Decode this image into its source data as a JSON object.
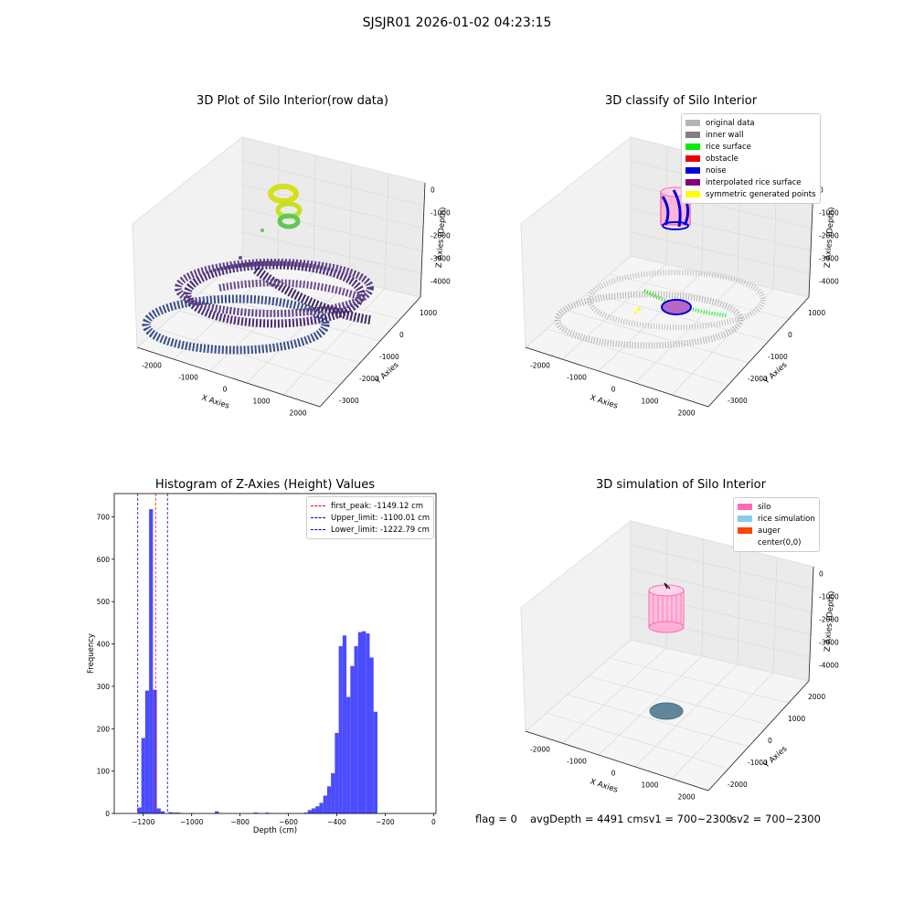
{
  "suptitle": "SJSJR01 2026-01-02 04:23:15",
  "panels": {
    "raw": {
      "title": "3D Plot of Silo Interior(row data)",
      "xlabel": "X Axies",
      "ylabel": "Y Axies",
      "zlabel": "Z Axies (Depth)",
      "xticks": [
        "-2000",
        "-1000",
        "0",
        "1000",
        "2000"
      ],
      "yticks": [
        "-3000",
        "-2000",
        "-1000",
        "0",
        "1000"
      ],
      "zticks": [
        "0",
        "-1000",
        "-2000",
        "-3000",
        "-4000"
      ]
    },
    "classify": {
      "title": "3D classify of Silo Interior",
      "xlabel": "X Axies",
      "ylabel": "Y Axies",
      "zlabel": "Z Axies (Depth)",
      "xticks": [
        "-2000",
        "-1000",
        "0",
        "1000",
        "2000"
      ],
      "yticks": [
        "-3000",
        "-2000",
        "-1000",
        "0",
        "1000"
      ],
      "zticks": [
        "0",
        "-1000",
        "-2000",
        "-3000",
        "-4000"
      ],
      "legend": [
        {
          "label": "original data",
          "color": "#b4b4b4"
        },
        {
          "label": "inner wall",
          "color": "#808080"
        },
        {
          "label": "rice surface",
          "color": "#00ee00"
        },
        {
          "label": "obstacle",
          "color": "#ee0000"
        },
        {
          "label": "noise",
          "color": "#0000dd"
        },
        {
          "label": "interpolated rice surface",
          "color": "#800080"
        },
        {
          "label": "symmetric generated points",
          "color": "#ffff00"
        }
      ]
    },
    "simulation": {
      "title": "3D simulation of Silo Interior",
      "xlabel": "X Axies",
      "ylabel": "Y Axies",
      "zlabel": "Z Axies (Depth)",
      "xticks": [
        "-2000",
        "-1000",
        "0",
        "1000",
        "2000"
      ],
      "yticks": [
        "-2000",
        "-1000",
        "0",
        "1000",
        "2000"
      ],
      "zticks": [
        "0",
        "-1000",
        "-2000",
        "-3000",
        "-4000"
      ],
      "legend": [
        {
          "label": "silo",
          "color": "#ff69b4"
        },
        {
          "label": "rice simulation",
          "color": "#87ceeb"
        },
        {
          "label": "auger",
          "color": "#ff4500"
        },
        {
          "label": "center(0,0)",
          "color": "#ffffff"
        }
      ]
    }
  },
  "footer": {
    "flag": "flag = 0",
    "avg": "avgDepth = 4491 cmsv1 = 700~2300",
    "sv2": "sv2 = 700~2300"
  },
  "chart_data": [
    {
      "type": "histogram",
      "title": "Histogram of Z-Axies (Height) Values",
      "xlabel": "Depth (cm)",
      "ylabel": "Frequency",
      "xlim": [
        -1320,
        10
      ],
      "ylim": [
        0,
        755
      ],
      "xticks": [
        -1200,
        -1000,
        -800,
        -600,
        -400,
        -200,
        0
      ],
      "yticks": [
        0,
        100,
        200,
        300,
        400,
        500,
        600,
        700
      ],
      "bin_edges": [
        -1240,
        -1224,
        -1208,
        -1192,
        -1176,
        -1160,
        -1144,
        -1128,
        -1112,
        -1096,
        -1080,
        -1064,
        -1048,
        -1032,
        -1016,
        -1000,
        -984,
        -968,
        -952,
        -936,
        -920,
        -904,
        -888,
        -872,
        -856,
        -840,
        -824,
        -808,
        -792,
        -776,
        -760,
        -744,
        -728,
        -712,
        -696,
        -680,
        -664,
        -648,
        -632,
        -616,
        -600,
        -584,
        -568,
        -552,
        -536,
        -520,
        -504,
        -488,
        -472,
        -456,
        -440,
        -424,
        -408,
        -392,
        -376,
        -360,
        -344,
        -328,
        -312,
        -296,
        -280,
        -264,
        -248,
        -232,
        -216,
        -200,
        -184,
        -168,
        -152,
        -136,
        -120,
        -104,
        -88,
        -72,
        -56,
        -40
      ],
      "counts": [
        0,
        14,
        178,
        290,
        718,
        292,
        12,
        5,
        0,
        3,
        2,
        2,
        1,
        0,
        0,
        0,
        0,
        0,
        0,
        0,
        0,
        5,
        1,
        0,
        0,
        0,
        0,
        0,
        0,
        0,
        0,
        2,
        1,
        0,
        2,
        1,
        0,
        0,
        0,
        0,
        0,
        0,
        0,
        0,
        2,
        8,
        12,
        17,
        25,
        42,
        64,
        95,
        190,
        395,
        420,
        275,
        348,
        395,
        428,
        430,
        425,
        368,
        240,
        0,
        0,
        0,
        0,
        0,
        0,
        0,
        0,
        0,
        0,
        0,
        0
      ],
      "vlines": [
        {
          "label": "first_peak: -1149.12 cm",
          "x": -1149.12,
          "color": "#ff0000"
        },
        {
          "label": "Upper_limit: -1100.01 cm",
          "x": -1100.01,
          "color": "#0000cc"
        },
        {
          "label": "Lower_limit: -1222.79 cm",
          "x": -1222.79,
          "color": "#0000cc"
        }
      ],
      "bar_color": "#4b4bff",
      "legend_position": "upper right"
    }
  ]
}
